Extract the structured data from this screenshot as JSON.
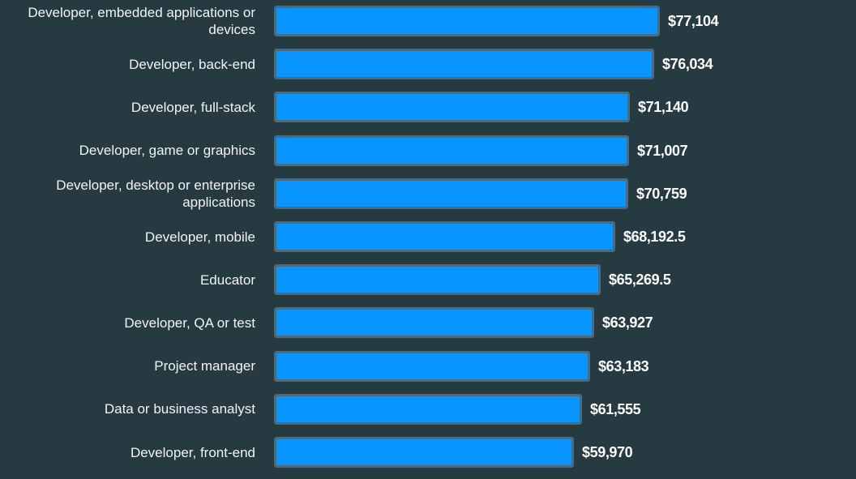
{
  "chart_data": {
    "type": "bar",
    "orientation": "horizontal",
    "categories": [
      "Developer, embedded applications or devices",
      "Developer, back-end",
      "Developer, full-stack",
      "Developer, game or graphics",
      "Developer, desktop or enterprise applications",
      "Developer, mobile",
      "Educator",
      "Developer, QA or test",
      "Project manager",
      "Data or business analyst",
      "Developer, front-end"
    ],
    "category_lines": [
      [
        "Developer, embedded applications or",
        "devices"
      ],
      [
        "Developer, back-end"
      ],
      [
        "Developer, full-stack"
      ],
      [
        "Developer, game or graphics"
      ],
      [
        "Developer, desktop or enterprise",
        "applications"
      ],
      [
        "Developer, mobile"
      ],
      [
        "Educator"
      ],
      [
        "Developer, QA or test"
      ],
      [
        "Project manager"
      ],
      [
        "Data or business analyst"
      ],
      [
        "Developer, front-end"
      ]
    ],
    "values": [
      77104,
      76034,
      71140,
      71007,
      70759,
      68192.5,
      65269.5,
      63927,
      63183,
      61555,
      59970
    ],
    "value_labels": [
      "$77,104",
      "$76,034",
      "$71,140",
      "$71,007",
      "$70,759",
      "$68,192.5",
      "$65,269.5",
      "$63,927",
      "$63,183",
      "$61,555",
      "$59,970"
    ],
    "title": "",
    "xlabel": "",
    "ylabel": "",
    "xlim": [
      0,
      77104
    ],
    "grid": false,
    "legend": false,
    "colors": {
      "background": "#263a41",
      "bar_fill": "#0895ff",
      "bar_border": "#4c6a7a",
      "text": "#f2f4f5"
    }
  }
}
